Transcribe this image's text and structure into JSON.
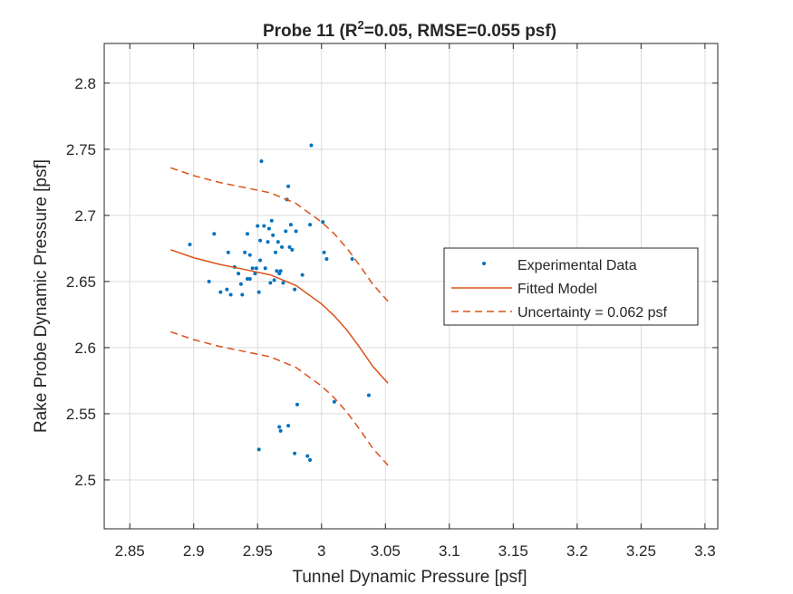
{
  "chart_data": {
    "type": "scatter",
    "title_main": "Probe 11 (R",
    "title_sup": "2",
    "title_rest": "=0.05, RMSE=0.055 psf)",
    "xlabel": "Tunnel Dynamic Pressure [psf]",
    "ylabel": "Rake Probe Dynamic Pressure [psf]",
    "xlim": [
      2.83,
      3.31
    ],
    "ylim": [
      2.463,
      2.83
    ],
    "xticks": [
      2.85,
      2.9,
      2.95,
      3.0,
      3.05,
      3.1,
      3.15,
      3.2,
      3.25,
      3.3
    ],
    "xtick_labels": [
      "2.85",
      "2.9",
      "2.95",
      "3",
      "3.05",
      "3.1",
      "3.15",
      "3.2",
      "3.25",
      "3.3"
    ],
    "yticks": [
      2.5,
      2.55,
      2.6,
      2.65,
      2.7,
      2.75,
      2.8
    ],
    "ytick_labels": [
      "2.5",
      "2.55",
      "2.6",
      "2.65",
      "2.7",
      "2.75",
      "2.8"
    ],
    "grid": true,
    "legend_position": "right",
    "colors": {
      "data": "#0072BD",
      "model": "#D95319",
      "axis": "#262626",
      "grid": "#dcdcdc"
    },
    "series": [
      {
        "name": "Experimental Data",
        "style": "points",
        "points": [
          [
            2.897,
            2.678
          ],
          [
            2.912,
            2.65
          ],
          [
            2.916,
            2.686
          ],
          [
            2.921,
            2.642
          ],
          [
            2.926,
            2.644
          ],
          [
            2.927,
            2.672
          ],
          [
            2.929,
            2.64
          ],
          [
            2.932,
            2.661
          ],
          [
            2.935,
            2.656
          ],
          [
            2.937,
            2.648
          ],
          [
            2.938,
            2.64
          ],
          [
            2.94,
            2.672
          ],
          [
            2.942,
            2.652
          ],
          [
            2.942,
            2.686
          ],
          [
            2.944,
            2.67
          ],
          [
            2.944,
            2.652
          ],
          [
            2.946,
            2.66
          ],
          [
            2.948,
            2.656
          ],
          [
            2.949,
            2.66
          ],
          [
            2.95,
            2.692
          ],
          [
            2.951,
            2.642
          ],
          [
            2.952,
            2.666
          ],
          [
            2.952,
            2.681
          ],
          [
            2.953,
            2.741
          ],
          [
            2.955,
            2.692
          ],
          [
            2.956,
            2.66
          ],
          [
            2.958,
            2.68
          ],
          [
            2.959,
            2.69
          ],
          [
            2.96,
            2.649
          ],
          [
            2.961,
            2.696
          ],
          [
            2.962,
            2.685
          ],
          [
            2.963,
            2.651
          ],
          [
            2.964,
            2.672
          ],
          [
            2.965,
            2.658
          ],
          [
            2.966,
            2.68
          ],
          [
            2.967,
            2.656
          ],
          [
            2.968,
            2.658
          ],
          [
            2.969,
            2.676
          ],
          [
            2.97,
            2.649
          ],
          [
            2.972,
            2.688
          ],
          [
            2.973,
            2.712
          ],
          [
            2.974,
            2.722
          ],
          [
            2.975,
            2.676
          ],
          [
            2.976,
            2.693
          ],
          [
            2.977,
            2.674
          ],
          [
            2.979,
            2.644
          ],
          [
            2.98,
            2.688
          ],
          [
            2.985,
            2.655
          ],
          [
            2.991,
            2.693
          ],
          [
            2.992,
            2.753
          ],
          [
            3.001,
            2.695
          ],
          [
            3.002,
            2.672
          ],
          [
            3.004,
            2.667
          ],
          [
            3.024,
            2.667
          ],
          [
            2.951,
            2.523
          ],
          [
            2.967,
            2.54
          ],
          [
            2.968,
            2.537
          ],
          [
            2.974,
            2.541
          ],
          [
            2.979,
            2.52
          ],
          [
            2.981,
            2.557
          ],
          [
            2.989,
            2.518
          ],
          [
            2.991,
            2.515
          ],
          [
            3.01,
            2.559
          ],
          [
            3.037,
            2.564
          ]
        ]
      },
      {
        "name": "Fitted Model",
        "style": "solid",
        "points": [
          [
            2.882,
            2.674
          ],
          [
            2.9,
            2.668
          ],
          [
            2.92,
            2.663
          ],
          [
            2.94,
            2.659
          ],
          [
            2.96,
            2.655
          ],
          [
            2.98,
            2.647
          ],
          [
            3.0,
            2.633
          ],
          [
            3.01,
            2.624
          ],
          [
            3.02,
            2.613
          ],
          [
            3.03,
            2.6
          ],
          [
            3.04,
            2.586
          ],
          [
            3.052,
            2.573
          ]
        ]
      },
      {
        "name": "Uncertainty = 0.062 psf",
        "style": "dashed",
        "points": [
          [
            2.882,
            2.736
          ],
          [
            2.9,
            2.73
          ],
          [
            2.92,
            2.725
          ],
          [
            2.94,
            2.721
          ],
          [
            2.96,
            2.717
          ],
          [
            2.98,
            2.709
          ],
          [
            3.0,
            2.695
          ],
          [
            3.01,
            2.686
          ],
          [
            3.02,
            2.675
          ],
          [
            3.03,
            2.662
          ],
          [
            3.04,
            2.648
          ],
          [
            3.052,
            2.635
          ]
        ]
      },
      {
        "name": "",
        "style": "dashed",
        "points": [
          [
            2.882,
            2.612
          ],
          [
            2.9,
            2.606
          ],
          [
            2.92,
            2.601
          ],
          [
            2.94,
            2.597
          ],
          [
            2.96,
            2.593
          ],
          [
            2.98,
            2.585
          ],
          [
            3.0,
            2.571
          ],
          [
            3.01,
            2.562
          ],
          [
            3.02,
            2.551
          ],
          [
            3.03,
            2.538
          ],
          [
            3.04,
            2.524
          ],
          [
            3.052,
            2.511
          ]
        ]
      }
    ]
  }
}
